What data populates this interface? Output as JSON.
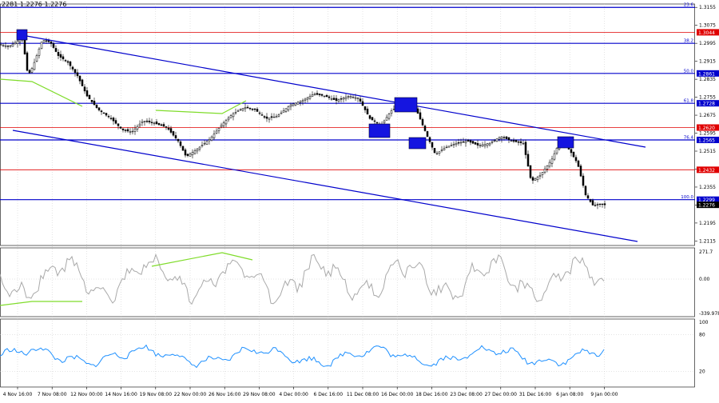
{
  "header": {
    "ohlc": "2281 1.2276 1.2276"
  },
  "chart_data": {
    "type": "candlestick",
    "price_axis": {
      "ylim": [
        1.2095,
        1.317
      ],
      "ticks": [
        "1.3155",
        "1.3075",
        "1.2995",
        "1.2915",
        "1.2835",
        "1.2755",
        "1.2675",
        "1.2595",
        "1.2515",
        "1.2435",
        "1.2355",
        "1.2275",
        "1.2195",
        "1.2115"
      ]
    },
    "time_axis": {
      "labels": [
        "4 Nov 16:00",
        "7 Nov 08:00",
        "12 Nov 00:00",
        "14 Nov 16:00",
        "19 Nov 08:00",
        "22 Nov 00:00",
        "26 Nov 16:00",
        "29 Nov 08:00",
        "4 Dec 00:00",
        "6 Dec 16:00",
        "11 Dec 08:00",
        "16 Dec 00:00",
        "18 Dec 16:00",
        "23 Dec 08:00",
        "27 Dec 00:00",
        "31 Dec 16:00",
        "6 Jan 08:00",
        "9 Jan 00:00"
      ]
    },
    "fib_levels": [
      {
        "label": "23.6",
        "price": 1.3155
      },
      {
        "label": "38.2",
        "price": 1.2995
      },
      {
        "label": "50.0",
        "price": 1.2861
      },
      {
        "label": "61.8",
        "price": 1.2728
      },
      {
        "label": "76.4",
        "price": 1.2565
      },
      {
        "label": "100.0",
        "price": 1.2299
      }
    ],
    "blue_price_tags": [
      "1.2861",
      "1.2728",
      "1.2565",
      "1.2299"
    ],
    "red_levels": [
      {
        "price": 1.3044,
        "label": "1.3044"
      },
      {
        "price": 1.262,
        "label": "1.2620"
      },
      {
        "price": 1.2432,
        "label": "1.2432"
      }
    ],
    "current_price": "1.2276",
    "price_series": {
      "anchors": [
        [
          0,
          1.299
        ],
        [
          10,
          1.298
        ],
        [
          27,
          1.302
        ],
        [
          34,
          1.285
        ],
        [
          40,
          1.289
        ],
        [
          52,
          1.301
        ],
        [
          62,
          1.3
        ],
        [
          72,
          1.294
        ],
        [
          84,
          1.291
        ],
        [
          96,
          1.285
        ],
        [
          108,
          1.276
        ],
        [
          122,
          1.27
        ],
        [
          138,
          1.266
        ],
        [
          152,
          1.261
        ],
        [
          164,
          1.26
        ],
        [
          178,
          1.265
        ],
        [
          192,
          1.264
        ],
        [
          208,
          1.262
        ],
        [
          222,
          1.256
        ],
        [
          232,
          1.249
        ],
        [
          248,
          1.253
        ],
        [
          262,
          1.257
        ],
        [
          276,
          1.263
        ],
        [
          290,
          1.268
        ],
        [
          305,
          1.271
        ],
        [
          318,
          1.27
        ],
        [
          332,
          1.266
        ],
        [
          346,
          1.267
        ],
        [
          362,
          1.272
        ],
        [
          378,
          1.274
        ],
        [
          392,
          1.277
        ],
        [
          406,
          1.276
        ],
        [
          420,
          1.274
        ],
        [
          436,
          1.276
        ],
        [
          448,
          1.275
        ],
        [
          462,
          1.266
        ],
        [
          476,
          1.263
        ],
        [
          490,
          1.27
        ],
        [
          506,
          1.272
        ],
        [
          520,
          1.27
        ],
        [
          534,
          1.258
        ],
        [
          544,
          1.25
        ],
        [
          556,
          1.253
        ],
        [
          570,
          1.255
        ],
        [
          584,
          1.256
        ],
        [
          598,
          1.254
        ],
        [
          612,
          1.255
        ],
        [
          626,
          1.258
        ],
        [
          640,
          1.256
        ],
        [
          654,
          1.255
        ],
        [
          664,
          1.238
        ],
        [
          676,
          1.241
        ],
        [
          690,
          1.248
        ],
        [
          700,
          1.256
        ],
        [
          712,
          1.252
        ],
        [
          722,
          1.246
        ],
        [
          732,
          1.232
        ],
        [
          742,
          1.227
        ],
        [
          752,
          1.228
        ],
        [
          756,
          1.2276
        ]
      ]
    },
    "cci": {
      "max_label": "271.7",
      "zero_label": "0.00",
      "min_label": "-339.978"
    },
    "rsi": {
      "top_label": "100",
      "upper_label": "80",
      "lower_label": "20"
    }
  }
}
